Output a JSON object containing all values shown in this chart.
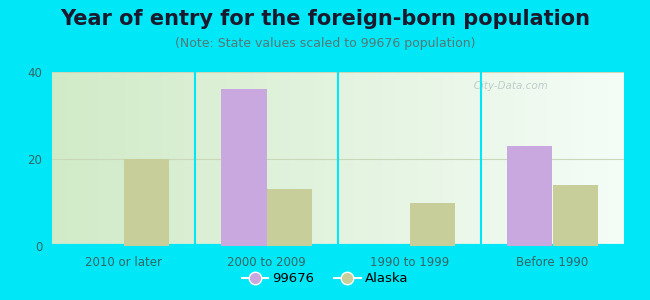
{
  "title": "Year of entry for the foreign-born population",
  "subtitle": "(Note: State values scaled to 99676 population)",
  "categories": [
    "2010 or later",
    "2000 to 2009",
    "1990 to 1999",
    "Before 1990"
  ],
  "series_99676": [
    0,
    36,
    0,
    23
  ],
  "series_alaska": [
    20,
    13,
    10,
    14
  ],
  "color_99676": "#c9a8e0",
  "color_alaska": "#c8ce9a",
  "ylim": [
    0,
    40
  ],
  "yticks": [
    0,
    20,
    40
  ],
  "background_outer": "#00e8f8",
  "legend_label_1": "99676",
  "legend_label_2": "Alaska",
  "title_fontsize": 15,
  "subtitle_fontsize": 9,
  "bar_width": 0.32,
  "grid_color": "#c8d8b8",
  "watermark": "   City-Data.com",
  "plot_bg_left": "#d0e8c0",
  "plot_bg_right": "#f0f8f0"
}
